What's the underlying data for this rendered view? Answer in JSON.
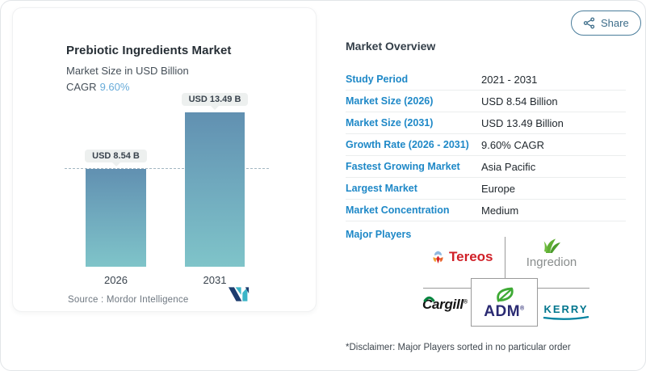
{
  "chart_panel": {
    "title": "Prebiotic Ingredients Market",
    "subtitle": "Market Size in USD Billion",
    "cagr_label": "CAGR",
    "cagr_value": "9.60%",
    "bars": [
      {
        "year": "2026",
        "label": "USD 8.54 B"
      },
      {
        "year": "2031",
        "label": "USD 13.49 B"
      }
    ],
    "source_label": "Source :  Mordor Intelligence"
  },
  "chart_data": {
    "type": "bar",
    "title": "Prebiotic Ingredients Market",
    "subtitle": "Market Size in USD Billion",
    "cagr": "9.60%",
    "categories": [
      "2026",
      "2031"
    ],
    "values": [
      8.54,
      13.49
    ],
    "bar_labels": [
      "USD 8.54 B",
      "USD 13.49 B"
    ],
    "ylabel": "USD Billion",
    "reference_line": 8.54,
    "grid": false,
    "legend": false,
    "colors": {
      "bar_gradient_top": "#6190b1",
      "bar_gradient_bottom": "#7fc4c9",
      "dashed_line": "#a3b6c2"
    }
  },
  "overview": {
    "heading": "Market Overview",
    "share_label": "Share",
    "rows": [
      {
        "label": "Study Period",
        "value": "2021 - 2031"
      },
      {
        "label": "Market Size (2026)",
        "value": "USD 8.54 Billion"
      },
      {
        "label": "Market Size (2031)",
        "value": "USD 13.49 Billion"
      },
      {
        "label": "Growth Rate (2026 - 2031)",
        "value": "9.60% CAGR"
      },
      {
        "label": "Fastest Growing Market",
        "value": "Asia Pacific"
      },
      {
        "label": "Largest Market",
        "value": "Europe"
      },
      {
        "label": "Market Concentration",
        "value": "Medium"
      }
    ],
    "major_players_label": "Major Players",
    "major_players": {
      "tereos": "Tereos",
      "ingredion": "Ingredion",
      "cargill": "Cargill",
      "adm": "ADM",
      "kerry": "KERRY"
    },
    "disclaimer": "*Disclaimer: Major Players sorted in no particular order"
  },
  "colors": {
    "label_blue": "#1e88c7",
    "cagr_blue": "#67abd9",
    "tereos_red": "#d02028",
    "ingredion_green": "#5fae33",
    "adm_navy": "#2a2a72",
    "kerry_teal": "#00758d"
  }
}
